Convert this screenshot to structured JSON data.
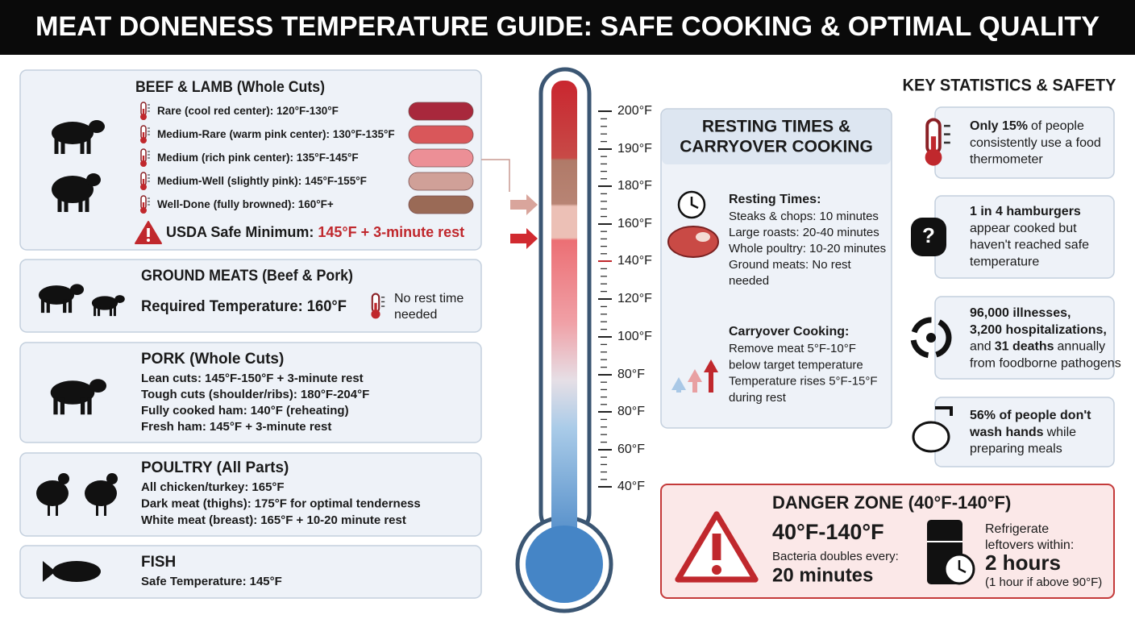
{
  "header": {
    "title": "MEAT DONENESS TEMPERATURE GUIDE: SAFE COOKING & OPTIMAL QUALITY"
  },
  "beef_lamb": {
    "title": "BEEF & LAMB (Whole Cuts)",
    "levels": [
      {
        "name": "Rare",
        "detail": "(cool red center): 120°F-130°F",
        "color": "#a8283c"
      },
      {
        "name": "Medium-Rare",
        "detail": "(warm pink center): 130°F-135°F",
        "color": "#d9575a"
      },
      {
        "name": "Medium",
        "detail": "(rich pink center): 135°F-145°F",
        "color": "#ec8f96"
      },
      {
        "name": "Medium-Well",
        "detail": "(slightly pink): 145°F-155°F",
        "color": "#d0a098"
      },
      {
        "name": "Well-Done",
        "detail": "(fully browned): 160°F+",
        "color": "#9a6a56"
      }
    ],
    "usda": {
      "label": "USDA Safe Minimum:",
      "value": "145°F + 3-minute rest"
    }
  },
  "ground": {
    "title": "GROUND MEATS (Beef & Pork)",
    "requirement": "Required Temperature: 160°F",
    "rest_note": [
      "No rest time",
      "needed"
    ]
  },
  "pork": {
    "title": "PORK (Whole Cuts)",
    "items": [
      {
        "label": "Lean cuts:",
        "value": "145°F-150°F + 3-minute rest"
      },
      {
        "label": "Tough cuts (shoulder/ribs):",
        "value": "180°F-204°F"
      },
      {
        "label": "Fully cooked ham:",
        "value": "140°F (reheating)"
      },
      {
        "label": "Fresh ham:",
        "value": "145°F + 3-minute rest"
      }
    ]
  },
  "poultry": {
    "title": "POULTRY (All Parts)",
    "items": [
      {
        "label": "All chicken/turkey:",
        "value": "165°F"
      },
      {
        "label": "Dark meat (thighs):",
        "value": "175°F for optimal tenderness"
      },
      {
        "label": "White meat (breast):",
        "value": "165°F + 10-20 minute rest"
      }
    ]
  },
  "fish": {
    "title": "FISH",
    "items": [
      {
        "label": "Safe Temperature:",
        "value": "145°F"
      }
    ]
  },
  "thermometer": {
    "ticks": [
      "200°F",
      "190°F",
      "180°F",
      "160°F",
      "140°F",
      "120°F",
      "100°F",
      "80°F",
      "80°F",
      "60°F",
      "40°F"
    ]
  },
  "resting": {
    "title": [
      "RESTING TIMES &",
      "CARRYOVER COOKING"
    ],
    "resting_times": {
      "heading": "Resting Times:",
      "lines": [
        "Steaks & chops: 10 minutes",
        "Large roasts: 20-40 minutes",
        "Whole poultry: 10-20 minutes",
        "Ground meats: No rest",
        "needed"
      ]
    },
    "carryover": {
      "heading": "Carryover Cooking:",
      "lines": [
        "Remove meat 5°F-10°F",
        "below target temperature",
        "Temperature rises 5°F-15°F",
        "during rest"
      ]
    }
  },
  "stats": {
    "title": "KEY STATISTICS & SAFETY",
    "items": [
      {
        "lines": [
          [
            {
              "text": "Only 15%",
              "bold": true
            },
            {
              "text": "of people"
            }
          ],
          [
            {
              "text": "consistently use a food"
            }
          ],
          [
            {
              "text": "thermometer"
            }
          ]
        ]
      },
      {
        "lines": [
          [
            {
              "text": "1 in 4 hamburgers",
              "bold": true
            }
          ],
          [
            {
              "text": "appear cooked but"
            }
          ],
          [
            {
              "text": "haven't reached safe"
            }
          ],
          [
            {
              "text": "temperature"
            }
          ]
        ]
      },
      {
        "lines": [
          [
            {
              "text": "96,000 illnesses,",
              "bold": true
            }
          ],
          [
            {
              "text": "3,200 hospitalizations,",
              "bold": true
            }
          ],
          [
            {
              "text": "and"
            },
            {
              "text": "31 deaths",
              "bold": true
            },
            {
              "text": "annually"
            }
          ],
          [
            {
              "text": "from foodborne pathogens"
            }
          ]
        ]
      },
      {
        "lines": [
          [
            {
              "text": "56% of people don't",
              "bold": true
            }
          ],
          [
            {
              "text": "wash hands",
              "bold": true
            },
            {
              "text": "while"
            }
          ],
          [
            {
              "text": "preparing meals"
            }
          ]
        ]
      }
    ]
  },
  "danger": {
    "title": "DANGER ZONE (40°F-140°F)",
    "range": "40°F-140°F",
    "note": "Bacteria doubles every:",
    "time": "20 minutes",
    "fridge_note": [
      "Refrigerate",
      "leftovers within:"
    ],
    "fridge_time": "2 hours",
    "fridge_sub": "(1 hour if above 90°F)"
  }
}
